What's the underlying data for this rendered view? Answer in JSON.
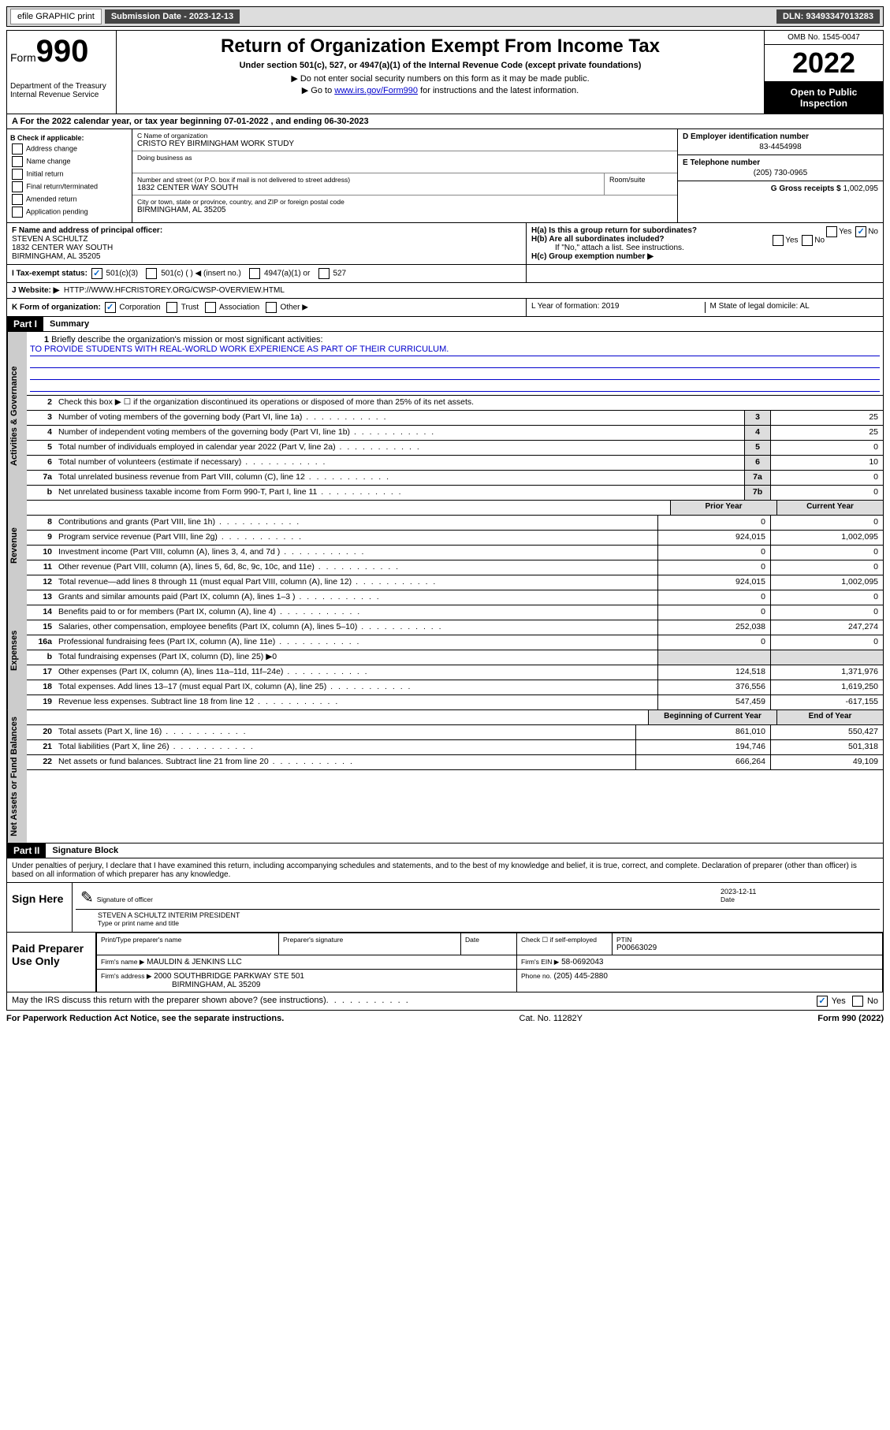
{
  "topbar": {
    "efile": "efile GRAPHIC print",
    "sub_label": "Submission Date - 2023-12-13",
    "dln": "DLN: 93493347013283"
  },
  "header": {
    "form_pre": "Form",
    "form_num": "990",
    "dept": "Department of the Treasury Internal Revenue Service",
    "title": "Return of Organization Exempt From Income Tax",
    "sub1": "Under section 501(c), 527, or 4947(a)(1) of the Internal Revenue Code (except private foundations)",
    "sub2": "▶ Do not enter social security numbers on this form as it may be made public.",
    "sub3_pre": "▶ Go to ",
    "sub3_link": "www.irs.gov/Form990",
    "sub3_post": " for instructions and the latest information.",
    "omb": "OMB No. 1545-0047",
    "year": "2022",
    "open": "Open to Public Inspection"
  },
  "rowA": "A For the 2022 calendar year, or tax year beginning 07-01-2022    , and ending 06-30-2023",
  "colB": {
    "header": "B Check if applicable:",
    "items": [
      "Address change",
      "Name change",
      "Initial return",
      "Final return/terminated",
      "Amended return",
      "Application pending"
    ]
  },
  "colC": {
    "name_label": "C Name of organization",
    "name": "CRISTO REY BIRMINGHAM WORK STUDY",
    "dba_label": "Doing business as",
    "addr_label": "Number and street (or P.O. box if mail is not delivered to street address)",
    "addr": "1832 CENTER WAY SOUTH",
    "suite_label": "Room/suite",
    "city_label": "City or town, state or province, country, and ZIP or foreign postal code",
    "city": "BIRMINGHAM, AL  35205"
  },
  "colRight": {
    "d_label": "D Employer identification number",
    "d_val": "83-4454998",
    "e_label": "E Telephone number",
    "e_val": "(205) 730-0965",
    "g_label": "G Gross receipts $",
    "g_val": "1,002,095"
  },
  "rowF": {
    "label": "F Name and address of principal officer:",
    "name": "STEVEN A SCHULTZ",
    "addr1": "1832 CENTER WAY SOUTH",
    "addr2": "BIRMINGHAM, AL  35205"
  },
  "rowH": {
    "ha": "H(a)  Is this a group return for subordinates?",
    "hb": "H(b)  Are all subordinates included?",
    "hb_note": "If \"No,\" attach a list. See instructions.",
    "hc": "H(c)  Group exemption number ▶"
  },
  "rowI": {
    "label": "I    Tax-exempt status:",
    "opts": [
      "501(c)(3)",
      "501(c) (  ) ◀ (insert no.)",
      "4947(a)(1) or",
      "527"
    ]
  },
  "rowJ": {
    "label": "J    Website: ▶",
    "val": "HTTP://WWW.HFCRISTOREY.ORG/CWSP-OVERVIEW.HTML"
  },
  "rowK": {
    "label": "K Form of organization:",
    "opts": [
      "Corporation",
      "Trust",
      "Association",
      "Other ▶"
    ]
  },
  "rowL": "L Year of formation: 2019",
  "rowM": "M State of legal domicile: AL",
  "part1": {
    "header": "Part I",
    "title": "Summary"
  },
  "mission": {
    "num": "1",
    "label": "Briefly describe the organization's mission or most significant activities:",
    "text": "TO PROVIDE STUDENTS WITH REAL-WORLD WORK EXPERIENCE AS PART OF THEIR CURRICULUM."
  },
  "lines_gov": [
    {
      "n": "2",
      "t": "Check this box ▶ ☐  if the organization discontinued its operations or disposed of more than 25% of its net assets.",
      "noval": true
    },
    {
      "n": "3",
      "t": "Number of voting members of the governing body (Part VI, line 1a)",
      "box": "3",
      "v": "25"
    },
    {
      "n": "4",
      "t": "Number of independent voting members of the governing body (Part VI, line 1b)",
      "box": "4",
      "v": "25"
    },
    {
      "n": "5",
      "t": "Total number of individuals employed in calendar year 2022 (Part V, line 2a)",
      "box": "5",
      "v": "0"
    },
    {
      "n": "6",
      "t": "Total number of volunteers (estimate if necessary)",
      "box": "6",
      "v": "10"
    },
    {
      "n": "7a",
      "t": "Total unrelated business revenue from Part VIII, column (C), line 12",
      "box": "7a",
      "v": "0"
    },
    {
      "n": "b",
      "t": "Net unrelated business taxable income from Form 990-T, Part I, line 11",
      "box": "7b",
      "v": "0"
    }
  ],
  "py_hdr": "Prior Year",
  "cy_hdr": "Current Year",
  "lines_rev": [
    {
      "n": "8",
      "t": "Contributions and grants (Part VIII, line 1h)",
      "p": "0",
      "c": "0"
    },
    {
      "n": "9",
      "t": "Program service revenue (Part VIII, line 2g)",
      "p": "924,015",
      "c": "1,002,095"
    },
    {
      "n": "10",
      "t": "Investment income (Part VIII, column (A), lines 3, 4, and 7d )",
      "p": "0",
      "c": "0"
    },
    {
      "n": "11",
      "t": "Other revenue (Part VIII, column (A), lines 5, 6d, 8c, 9c, 10c, and 11e)",
      "p": "0",
      "c": "0"
    },
    {
      "n": "12",
      "t": "Total revenue—add lines 8 through 11 (must equal Part VIII, column (A), line 12)",
      "p": "924,015",
      "c": "1,002,095"
    }
  ],
  "lines_exp": [
    {
      "n": "13",
      "t": "Grants and similar amounts paid (Part IX, column (A), lines 1–3 )",
      "p": "0",
      "c": "0"
    },
    {
      "n": "14",
      "t": "Benefits paid to or for members (Part IX, column (A), line 4)",
      "p": "0",
      "c": "0"
    },
    {
      "n": "15",
      "t": "Salaries, other compensation, employee benefits (Part IX, column (A), lines 5–10)",
      "p": "252,038",
      "c": "247,274"
    },
    {
      "n": "16a",
      "t": "Professional fundraising fees (Part IX, column (A), line 11e)",
      "p": "0",
      "c": "0"
    },
    {
      "n": "b",
      "t": "Total fundraising expenses (Part IX, column (D), line 25) ▶0",
      "noval": true
    },
    {
      "n": "17",
      "t": "Other expenses (Part IX, column (A), lines 11a–11d, 11f–24e)",
      "p": "124,518",
      "c": "1,371,976"
    },
    {
      "n": "18",
      "t": "Total expenses. Add lines 13–17 (must equal Part IX, column (A), line 25)",
      "p": "376,556",
      "c": "1,619,250"
    },
    {
      "n": "19",
      "t": "Revenue less expenses. Subtract line 18 from line 12",
      "p": "547,459",
      "c": "-617,155"
    }
  ],
  "by_hdr": "Beginning of Current Year",
  "ey_hdr": "End of Year",
  "lines_net": [
    {
      "n": "20",
      "t": "Total assets (Part X, line 16)",
      "p": "861,010",
      "c": "550,427"
    },
    {
      "n": "21",
      "t": "Total liabilities (Part X, line 26)",
      "p": "194,746",
      "c": "501,318"
    },
    {
      "n": "22",
      "t": "Net assets or fund balances. Subtract line 21 from line 20",
      "p": "666,264",
      "c": "49,109"
    }
  ],
  "sides": {
    "gov": "Activities & Governance",
    "rev": "Revenue",
    "exp": "Expenses",
    "net": "Net Assets or Fund Balances"
  },
  "part2": {
    "header": "Part II",
    "title": "Signature Block"
  },
  "sig": {
    "declaration": "Under penalties of perjury, I declare that I have examined this return, including accompanying schedules and statements, and to the best of my knowledge and belief, it is true, correct, and complete. Declaration of preparer (other than officer) is based on all information of which preparer has any knowledge.",
    "sign_here": "Sign Here",
    "sig_officer": "Signature of officer",
    "date_label": "Date",
    "date": "2023-12-11",
    "officer_name": "STEVEN A SCHULTZ  INTERIM PRESIDENT",
    "type_name": "Type or print name and title"
  },
  "prep": {
    "label": "Paid Preparer Use Only",
    "h1": "Print/Type preparer's name",
    "h2": "Preparer's signature",
    "h3": "Date",
    "h4_pre": "Check ☐ if self-employed",
    "h5": "PTIN",
    "ptin": "P00663029",
    "firm_label": "Firm's name    ▶",
    "firm": "MAULDIN & JENKINS LLC",
    "ein_label": "Firm's EIN ▶",
    "ein": "58-0692043",
    "addr_label": "Firm's address ▶",
    "addr1": "2000 SOUTHBRIDGE PARKWAY STE 501",
    "addr2": "BIRMINGHAM, AL  35209",
    "phone_label": "Phone no.",
    "phone": "(205) 445-2880"
  },
  "may_discuss": "May the IRS discuss this return with the preparer shown above? (see instructions)",
  "footer": {
    "left": "For Paperwork Reduction Act Notice, see the separate instructions.",
    "mid": "Cat. No. 11282Y",
    "right": "Form 990 (2022)"
  },
  "yes": "Yes",
  "no": "No"
}
